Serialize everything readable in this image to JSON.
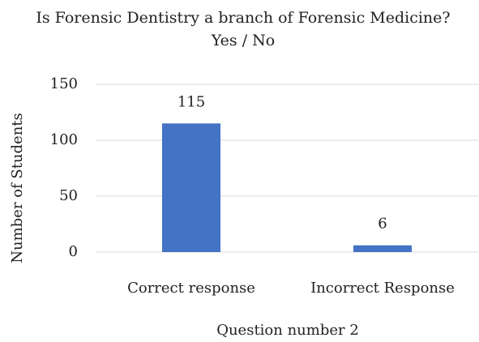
{
  "chart_data": {
    "type": "bar",
    "title": "Is Forensic Dentistry a branch of Forensic Medicine? Yes / No",
    "categories": [
      "Correct response",
      "Incorrect Response"
    ],
    "values": [
      115,
      6
    ],
    "color": "#4472c4",
    "xlabel": "Question number 2",
    "ylabel": "Number of Students",
    "ylim": [
      0,
      150
    ],
    "yticks": [
      0,
      50,
      100,
      150
    ],
    "grid": true
  }
}
